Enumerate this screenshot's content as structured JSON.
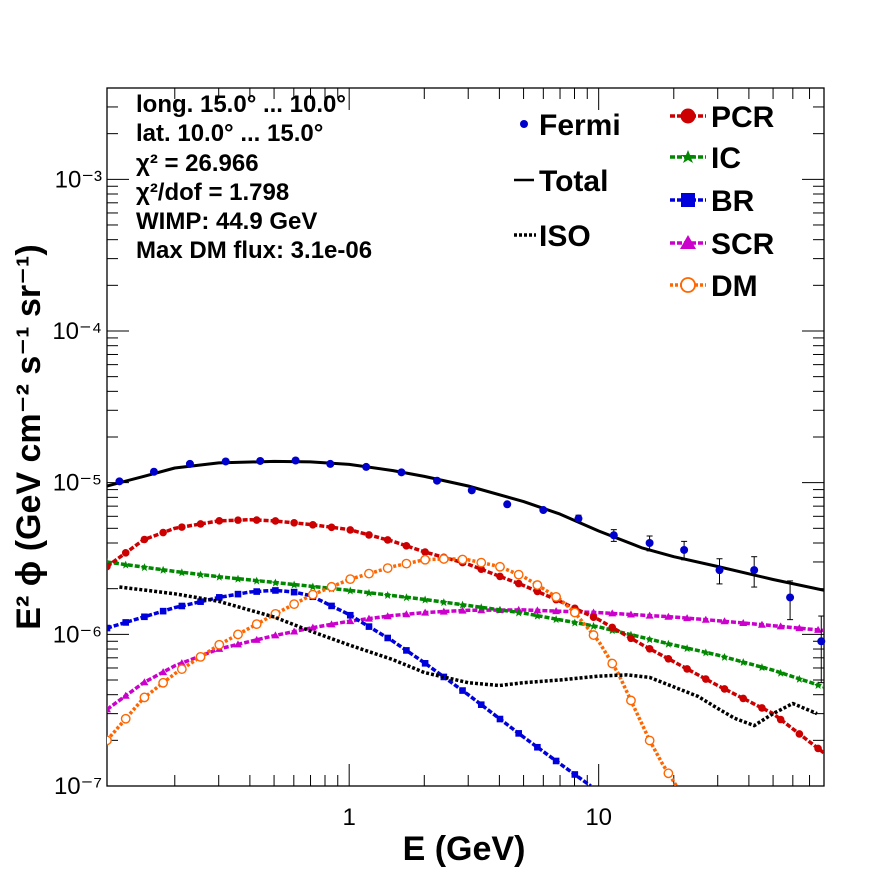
{
  "chart_data": {
    "type": "line",
    "xscale": "log",
    "yscale": "log",
    "xlim": [
      0.107,
      80
    ],
    "ylim": [
      1e-07,
      0.004
    ],
    "xlabel": "E (GeV)",
    "ylabel": "E² ϕ (GeV cm⁻² s⁻¹ sr⁻¹)",
    "x_ticks": [
      {
        "value": 1,
        "label": "1"
      },
      {
        "value": 10,
        "label": "10"
      }
    ],
    "y_ticks": [
      {
        "value": 1e-07,
        "label": "10⁻⁷"
      },
      {
        "value": 1e-06,
        "label": "10⁻⁶"
      },
      {
        "value": 1e-05,
        "label": "10⁻⁵"
      },
      {
        "value": 0.0001,
        "label": "10⁻⁴"
      },
      {
        "value": 0.001,
        "label": "10⁻³"
      }
    ],
    "info_lines": [
      "long. 15.0° ... 10.0°",
      "lat. 10.0° ... 15.0°",
      "χ² = 26.966",
      "χ²/dof = 1.798",
      "WIMP: 44.9 GeV",
      "Max DM flux: 3.1e-06"
    ],
    "legend_left": [
      "Fermi",
      "Total",
      "ISO"
    ],
    "legend_right": [
      "PCR",
      "IC",
      "BR",
      "SCR",
      "DM"
    ],
    "fermi": {
      "name": "Fermi",
      "color": "#0000cc",
      "x": [
        0.12,
        0.165,
        0.23,
        0.32,
        0.44,
        0.61,
        0.84,
        1.17,
        1.62,
        2.25,
        3.1,
        4.3,
        6.0,
        8.3,
        11.5,
        16.0,
        22.0,
        30.5,
        42.0,
        58.5,
        78.0
      ],
      "y": [
        1.02e-05,
        1.18e-05,
        1.33e-05,
        1.38e-05,
        1.39e-05,
        1.4e-05,
        1.33e-05,
        1.27e-05,
        1.17e-05,
        1.03e-05,
        8.9e-06,
        7.2e-06,
        6.6e-06,
        5.8e-06,
        4.5e-06,
        4e-06,
        3.6e-06,
        2.65e-06,
        2.65e-06,
        1.75e-06,
        9e-07
      ],
      "err": [
        2e-07,
        2e-07,
        2e-07,
        2e-07,
        2e-07,
        2e-07,
        2e-07,
        2e-07,
        2e-07,
        2e-07,
        2e-07,
        2e-07,
        3e-07,
        3e-07,
        4e-07,
        4.5e-07,
        5e-07,
        5e-07,
        6e-07,
        5e-07,
        4.2e-07
      ]
    },
    "series": [
      {
        "name": "Total",
        "color": "#000000",
        "style": "solid",
        "marker": "none",
        "x": [
          0.107,
          0.15,
          0.2,
          0.3,
          0.5,
          0.7,
          1.0,
          1.5,
          2.0,
          3.0,
          5.0,
          7.0,
          10,
          15,
          20,
          30,
          50,
          80
        ],
        "y": [
          9.5e-06,
          1.1e-05,
          1.25e-05,
          1.35e-05,
          1.38e-05,
          1.37e-05,
          1.32e-05,
          1.2e-05,
          1.1e-05,
          9.5e-06,
          7.5e-06,
          6.2e-06,
          4.8e-06,
          3.7e-06,
          3.25e-06,
          2.8e-06,
          2.3e-06,
          1.95e-06
        ]
      },
      {
        "name": "ISO",
        "color": "#000000",
        "style": "dotted",
        "marker": "none",
        "x": [
          0.12,
          0.2,
          0.3,
          0.5,
          0.7,
          1.0,
          1.5,
          2.0,
          3.0,
          4.0,
          5.0,
          7.0,
          10,
          13,
          16,
          20,
          25,
          30,
          35,
          42,
          50,
          60,
          75
        ],
        "y": [
          2.05e-06,
          1.85e-06,
          1.65e-06,
          1.3e-06,
          1.05e-06,
          8.5e-07,
          6.8e-07,
          5.6e-07,
          4.8e-07,
          4.6e-07,
          4.8e-07,
          5e-07,
          5.3e-07,
          5.4e-07,
          5.2e-07,
          4.5e-07,
          3.9e-07,
          3.25e-07,
          2.8e-07,
          2.5e-07,
          3e-07,
          3.5e-07,
          3e-07
        ]
      },
      {
        "name": "PCR",
        "color": "#cc0000",
        "style": "dashed",
        "marker": "circle",
        "x": [
          0.107,
          0.15,
          0.2,
          0.3,
          0.4,
          0.5,
          0.7,
          1.0,
          1.5,
          2.0,
          3.0,
          5.0,
          7.0,
          10,
          15,
          20,
          30,
          50,
          80
        ],
        "y": [
          2.8e-06,
          4.2e-06,
          5e-06,
          5.6e-06,
          5.7e-06,
          5.6e-06,
          5.3e-06,
          4.9e-06,
          4.1e-06,
          3.5e-06,
          2.9e-06,
          2.1e-06,
          1.65e-06,
          1.25e-06,
          8.5e-07,
          6.6e-07,
          4.6e-07,
          3e-07,
          1.65e-07
        ]
      },
      {
        "name": "IC",
        "color": "#008800",
        "style": "dashed",
        "marker": "star",
        "x": [
          0.107,
          0.2,
          0.3,
          0.5,
          1.0,
          2.0,
          3.0,
          5.0,
          10,
          20,
          30,
          50,
          80
        ],
        "y": [
          3e-06,
          2.6e-06,
          2.4e-06,
          2.2e-06,
          1.95e-06,
          1.7e-06,
          1.55e-06,
          1.38e-06,
          1.12e-06,
          8.5e-07,
          7.3e-07,
          5.8e-07,
          4.5e-07
        ]
      },
      {
        "name": "BR",
        "color": "#0000dd",
        "style": "dashed",
        "marker": "square",
        "x": [
          0.107,
          0.15,
          0.2,
          0.3,
          0.4,
          0.5,
          0.6,
          0.7,
          1.0,
          1.5,
          2.0,
          3.0,
          5.0,
          7.0,
          9.3
        ],
        "y": [
          1.1e-06,
          1.3e-06,
          1.5e-06,
          1.75e-06,
          1.9e-06,
          1.95e-06,
          1.9e-06,
          1.8e-06,
          1.35e-06,
          9e-07,
          6.5e-07,
          4e-07,
          2.1e-07,
          1.4e-07,
          1e-07
        ]
      },
      {
        "name": "SCR",
        "color": "#cc00cc",
        "style": "dashed",
        "marker": "triangle",
        "x": [
          0.107,
          0.15,
          0.2,
          0.3,
          0.5,
          0.7,
          1.0,
          1.5,
          2.0,
          3.0,
          5.0,
          7.0,
          10,
          20,
          30,
          50,
          80
        ],
        "y": [
          3.2e-07,
          4.8e-07,
          6.2e-07,
          8e-07,
          9.8e-07,
          1.1e-06,
          1.22e-06,
          1.33e-06,
          1.39e-06,
          1.44e-06,
          1.45e-06,
          1.42e-06,
          1.39e-06,
          1.3e-06,
          1.23e-06,
          1.14e-06,
          1.06e-06
        ]
      },
      {
        "name": "DM",
        "color": "#ff6600",
        "style": "dotted",
        "marker": "open-circle",
        "x": [
          0.107,
          0.15,
          0.2,
          0.3,
          0.5,
          0.7,
          1.0,
          1.5,
          2.0,
          2.5,
          3.0,
          4.0,
          5.0,
          6.0,
          7.0,
          8.0,
          10,
          12,
          14,
          16,
          18,
          20.5
        ],
        "y": [
          2e-07,
          3.8e-07,
          5.5e-07,
          8.5e-07,
          1.35e-06,
          1.8e-06,
          2.3e-06,
          2.8e-06,
          3.1e-06,
          3.15e-06,
          3.1e-06,
          2.8e-06,
          2.4e-06,
          2e-06,
          1.7e-06,
          1.4e-06,
          9e-07,
          5.5e-07,
          3.2e-07,
          2e-07,
          1.4e-07,
          1e-07
        ]
      }
    ]
  }
}
